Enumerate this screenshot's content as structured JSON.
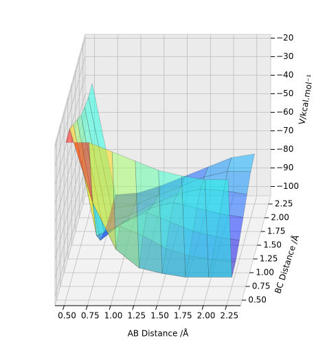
{
  "chart_data": {
    "type": "surface3d",
    "x_label": "AB Distance /Å",
    "y_label": "BC Distance /Å",
    "z_label": "V/kcal.mol⁻¹",
    "colormap": "jet",
    "x": [
      0.5,
      0.75,
      1.0,
      1.25,
      1.5,
      1.75,
      2.0,
      2.25
    ],
    "y": [
      0.5,
      0.75,
      1.0,
      1.25,
      1.5,
      1.75,
      2.0,
      2.25
    ],
    "z": [
      [
        -20,
        -20,
        -25,
        -30,
        -35,
        -38,
        -40,
        -40
      ],
      [
        -20,
        -60,
        -85,
        -95,
        -98,
        -100,
        -100,
        -100
      ],
      [
        -25,
        -85,
        -80,
        -85,
        -92,
        -96,
        -98,
        -99
      ],
      [
        -30,
        -95,
        -85,
        -80,
        -85,
        -90,
        -93,
        -95
      ],
      [
        -35,
        -98,
        -92,
        -85,
        -82,
        -85,
        -88,
        -90
      ],
      [
        -38,
        -100,
        -96,
        -90,
        -85,
        -82,
        -83,
        -85
      ],
      [
        -40,
        -100,
        -98,
        -93,
        -88,
        -83,
        -80,
        -80
      ],
      [
        -40,
        -100,
        -99,
        -95,
        -90,
        -85,
        -80,
        -78
      ]
    ],
    "xlim": [
      0.4,
      2.4
    ],
    "ylim": [
      0.4,
      2.4
    ],
    "zlim": [
      -105,
      -18
    ],
    "xticks": [
      {
        "value": 0.5,
        "label": "0.50"
      },
      {
        "value": 0.75,
        "label": "0.75"
      },
      {
        "value": 1.0,
        "label": "1.00"
      },
      {
        "value": 1.25,
        "label": "1.25"
      },
      {
        "value": 1.5,
        "label": "1.50"
      },
      {
        "value": 1.75,
        "label": "1.75"
      },
      {
        "value": 2.0,
        "label": "2.00"
      },
      {
        "value": 2.25,
        "label": "2.25"
      }
    ],
    "yticks": [
      {
        "value": 0.5,
        "label": "0.50"
      },
      {
        "value": 0.75,
        "label": "0.75"
      },
      {
        "value": 1.0,
        "label": "1.00"
      },
      {
        "value": 1.25,
        "label": "1.25"
      },
      {
        "value": 1.5,
        "label": "1.50"
      },
      {
        "value": 1.75,
        "label": "1.75"
      },
      {
        "value": 2.0,
        "label": "2.00"
      },
      {
        "value": 2.25,
        "label": "2.25"
      }
    ],
    "zticks": [
      {
        "value": -20,
        "label": "−20"
      },
      {
        "value": -30,
        "label": "−30"
      },
      {
        "value": -40,
        "label": "−40"
      },
      {
        "value": -50,
        "label": "−50"
      },
      {
        "value": -60,
        "label": "−60"
      },
      {
        "value": -70,
        "label": "−70"
      },
      {
        "value": -80,
        "label": "−80"
      },
      {
        "value": -90,
        "label": "−90"
      },
      {
        "value": -100,
        "label": "−100"
      }
    ],
    "grid": true
  }
}
